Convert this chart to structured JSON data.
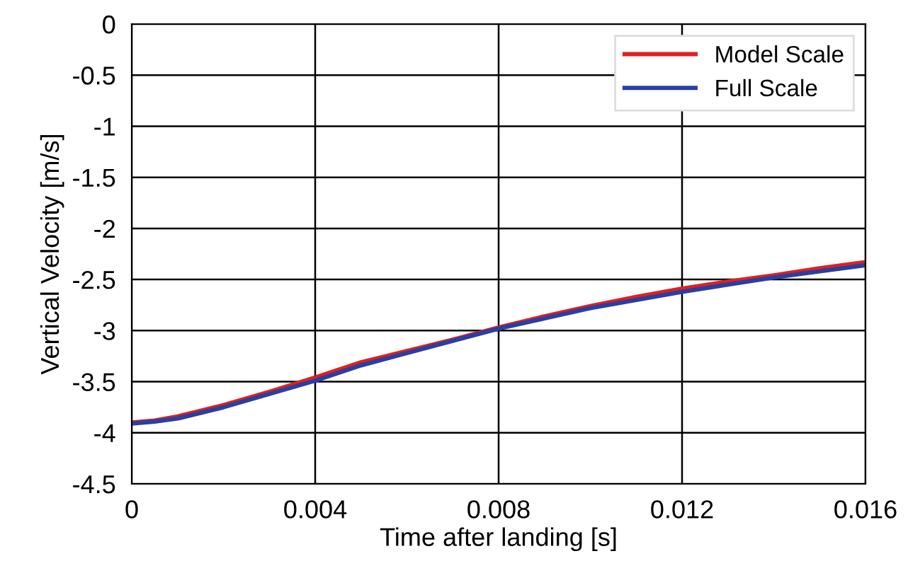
{
  "chart_data": {
    "type": "line",
    "xlabel": "Time after landing [s]",
    "ylabel": "Vertical Velocity [m/s]",
    "x": [
      0,
      0.0005,
      0.001,
      0.002,
      0.003,
      0.004,
      0.005,
      0.006,
      0.007,
      0.008,
      0.009,
      0.01,
      0.011,
      0.012,
      0.013,
      0.014,
      0.015,
      0.016
    ],
    "series": [
      {
        "name": "Model Scale",
        "color": "#e02020",
        "values": [
          -3.9,
          -3.88,
          -3.84,
          -3.73,
          -3.6,
          -3.46,
          -3.31,
          -3.2,
          -3.09,
          -2.97,
          -2.86,
          -2.76,
          -2.67,
          -2.59,
          -2.52,
          -2.46,
          -2.39,
          -2.33
        ]
      },
      {
        "name": "Full Scale",
        "color": "#2a3fa0",
        "values": [
          -3.91,
          -3.89,
          -3.86,
          -3.75,
          -3.62,
          -3.49,
          -3.34,
          -3.22,
          -3.1,
          -2.98,
          -2.88,
          -2.78,
          -2.7,
          -2.62,
          -2.55,
          -2.48,
          -2.42,
          -2.36
        ]
      }
    ],
    "xlim": [
      0,
      0.016
    ],
    "xticks": [
      0,
      0.004,
      0.008,
      0.012,
      0.016
    ],
    "ylim": [
      -4.5,
      0
    ],
    "yticks": [
      -4.5,
      -4,
      -3.5,
      -3,
      -2.5,
      -2,
      -1.5,
      -1,
      -0.5,
      0
    ],
    "grid": true,
    "legend": "top right",
    "line_style": "solid",
    "marker": "none"
  }
}
